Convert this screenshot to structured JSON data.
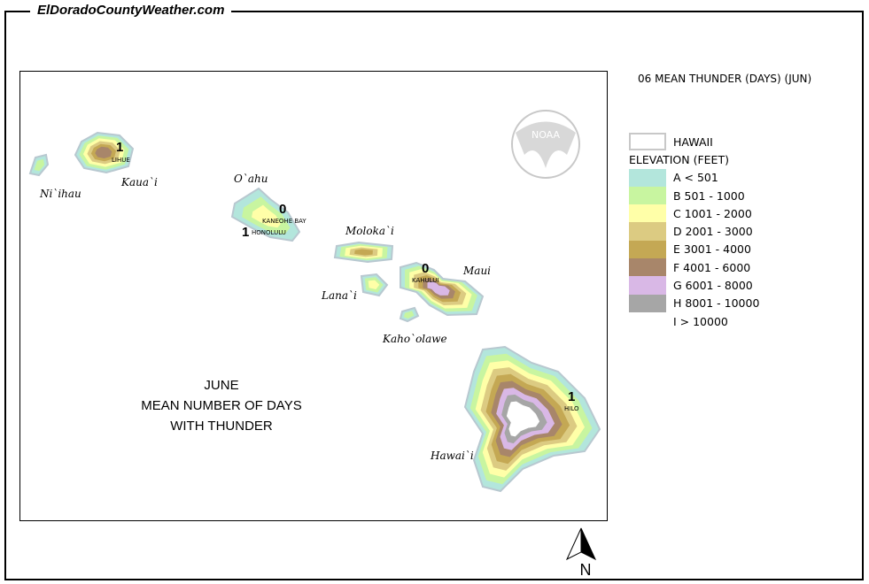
{
  "site_title": "ElDoradoCountyWeather.com",
  "legend_title": "06 MEAN THUNDER (DAYS) (JUN)",
  "map_title": [
    "JUNE",
    "MEAN NUMBER OF DAYS",
    "WITH THUNDER"
  ],
  "legend": {
    "state_label": "HAWAII",
    "elevation_header": "ELEVATION (FEET)",
    "classes": [
      {
        "label": "A < 501",
        "color": "#b3e6dc"
      },
      {
        "label": "B 501 - 1000",
        "color": "#c8f5a0"
      },
      {
        "label": "C 1001 - 2000",
        "color": "#ffffa8"
      },
      {
        "label": "D 2001 - 3000",
        "color": "#dccb82"
      },
      {
        "label": "E 3001 - 4000",
        "color": "#c4a854"
      },
      {
        "label": "F 4001 - 6000",
        "color": "#a8866a"
      },
      {
        "label": "G 6001 - 8000",
        "color": "#d9b8e6"
      },
      {
        "label": "H 8001 - 10000",
        "color": "#a6a6a6"
      },
      {
        "label": "I > 10000",
        "color": "#ffffff"
      }
    ]
  },
  "islands": [
    "Ni`ihau",
    "Kaua`i",
    "O`ahu",
    "Moloka`i",
    "Lana`i",
    "Maui",
    "Kaho`olawe",
    "Hawai`i"
  ],
  "stations": [
    {
      "name": "LIHUE",
      "value": "1"
    },
    {
      "name": "KANEOHE BAY",
      "value": "0"
    },
    {
      "name": "HONOLULU",
      "value": "1"
    },
    {
      "name": "KAHULUI",
      "value": "0"
    },
    {
      "name": "HILO",
      "value": "1"
    }
  ],
  "logo_text": "NOAA",
  "north_label": "N"
}
